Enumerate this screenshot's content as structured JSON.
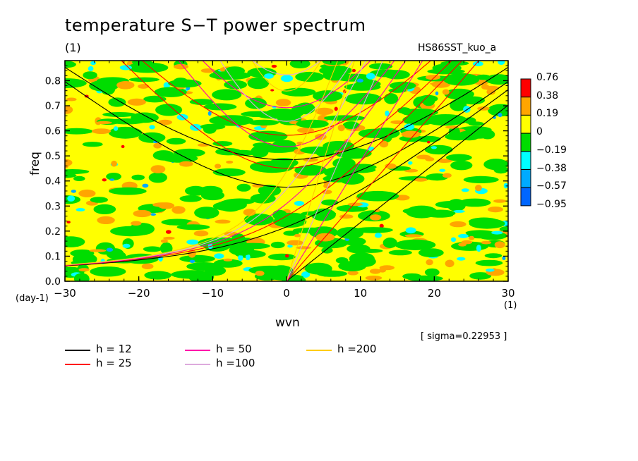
{
  "chart_data": {
    "type": "heatmap",
    "title": "temperature S−T power spectrum",
    "unit_top": "(1)",
    "run_name": "HS86SST_kuo_a",
    "xlabel": "wvn",
    "x_unit": "(1)",
    "ylabel": "freq",
    "y_unit": "(day-1)",
    "xlim": [
      -30,
      30
    ],
    "ylim": [
      0.0,
      0.88
    ],
    "x_ticks": [
      -30,
      -20,
      -10,
      0,
      10,
      20,
      30
    ],
    "x_tick_labels": [
      "−30",
      "−20",
      "−10",
      "0",
      "10",
      "20",
      "30"
    ],
    "y_ticks": [
      0.0,
      0.1,
      0.2,
      0.3,
      0.4,
      0.5,
      0.6,
      0.7,
      0.8
    ],
    "y_tick_labels": [
      "0.0",
      "0.1",
      "0.2",
      "0.3",
      "0.4",
      "0.5",
      "0.6",
      "0.7",
      "0.8"
    ],
    "sigma_text": "[ sigma=0.22953 ]",
    "colorbar": {
      "levels": [
        "0.76",
        "0.38",
        "0.19",
        "0",
        "−0.19",
        "−0.38",
        "−0.57",
        "−0.95"
      ],
      "colors": [
        "#ff0000",
        "#ffa500",
        "#ffff00",
        "#00dd00",
        "#00ffff",
        "#00aaff",
        "#0066ff"
      ]
    },
    "legend": [
      {
        "label": "h = 12",
        "color": "#000000",
        "h": 12
      },
      {
        "label": "h = 25",
        "color": "#ff0000",
        "h": 25
      },
      {
        "label": "h = 50",
        "color": "#ff00aa",
        "h": 50
      },
      {
        "label": "h =100",
        "color": "#ddaadd",
        "h": 100
      },
      {
        "label": "h =200",
        "color": "#ffcc00",
        "h": 200
      }
    ]
  }
}
